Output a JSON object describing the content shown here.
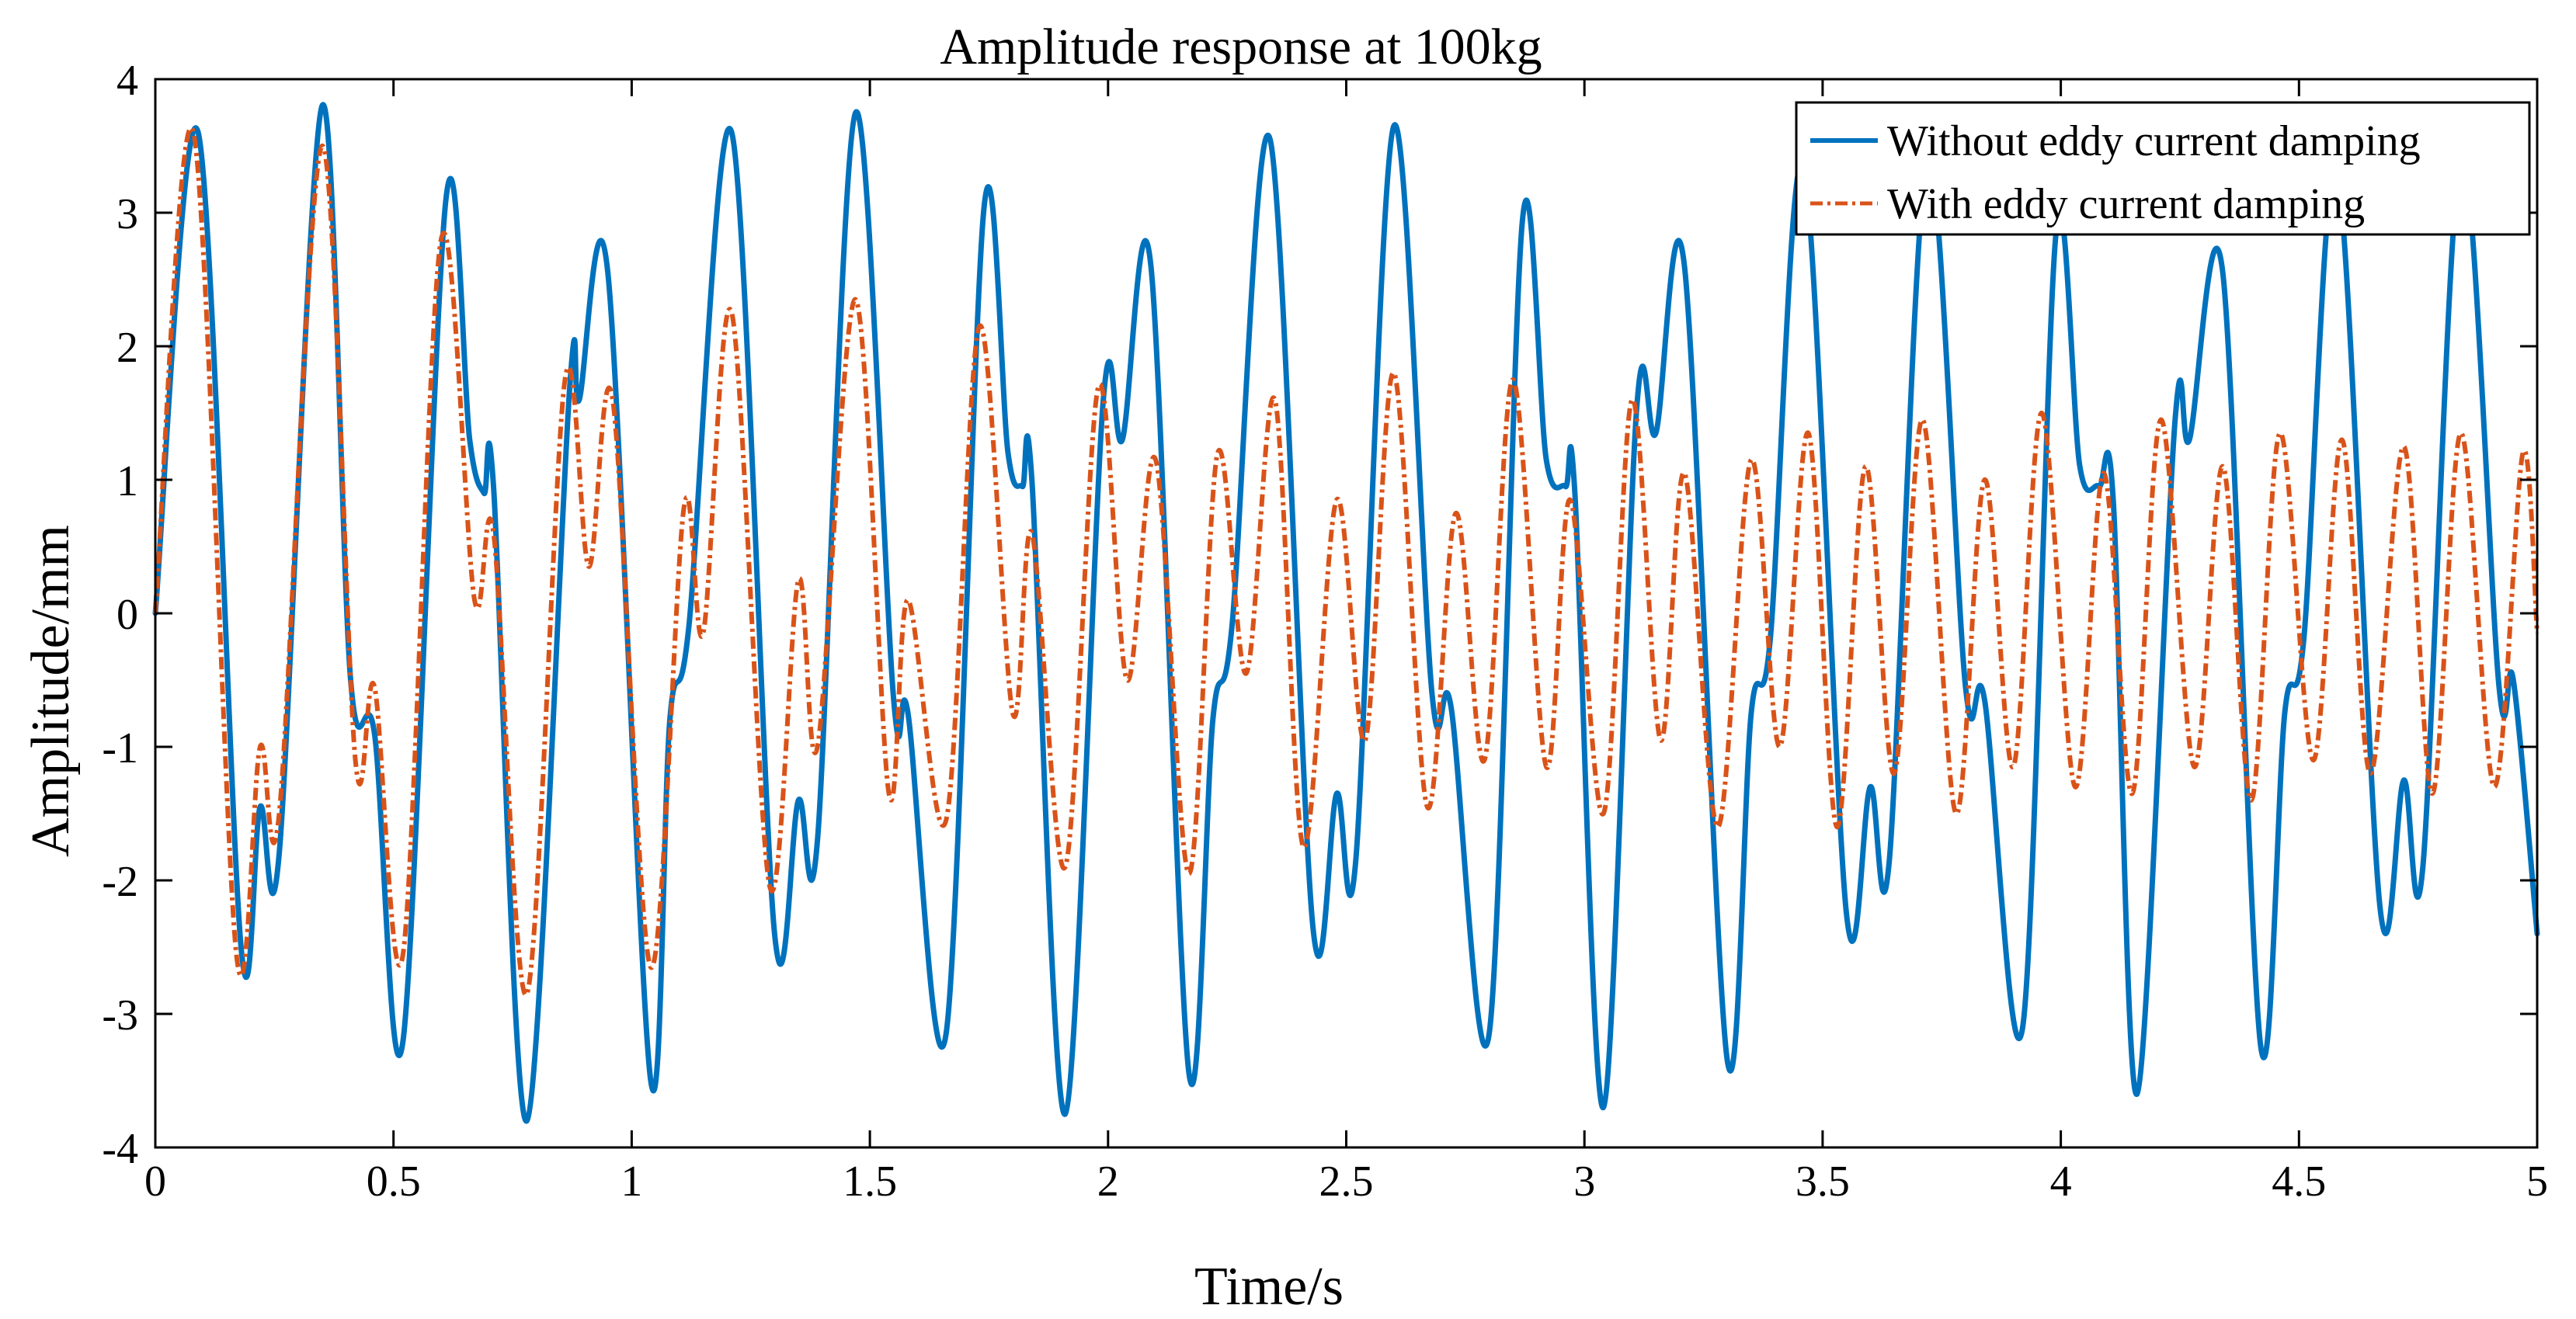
{
  "chart_data": {
    "type": "line",
    "title": "Amplitude response at 100kg",
    "xlabel": "Time/s",
    "ylabel": "Amplitude/mm",
    "xlim": [
      0,
      5
    ],
    "ylim": [
      -4,
      4
    ],
    "x_ticks": [
      "0",
      "0.5",
      "1",
      "1.5",
      "2",
      "2.5",
      "3",
      "3.5",
      "4",
      "4.5",
      "5"
    ],
    "y_ticks": [
      "4",
      "3",
      "2",
      "1",
      "0",
      "-1",
      "-2",
      "-3",
      "-4"
    ],
    "legend_position": "top-right",
    "grid": false,
    "series": [
      {
        "name": "Without eddy current damping",
        "color": "#0072BD",
        "line_style": "solid",
        "points": [
          [
            0.0,
            0.0
          ],
          [
            0.09,
            3.6
          ],
          [
            0.18,
            -2.5
          ],
          [
            0.22,
            -1.45
          ],
          [
            0.26,
            -1.8
          ],
          [
            0.35,
            3.8
          ],
          [
            0.41,
            -0.5
          ],
          [
            0.46,
            -0.9
          ],
          [
            0.52,
            -3.2
          ],
          [
            0.61,
            3.1
          ],
          [
            0.66,
            1.3
          ],
          [
            0.69,
            0.9
          ],
          [
            0.71,
            0.95
          ],
          [
            0.78,
            -3.8
          ],
          [
            0.87,
            1.7
          ],
          [
            0.89,
            1.6
          ],
          [
            0.95,
            2.55
          ],
          [
            1.04,
            -3.5
          ],
          [
            1.08,
            -0.8
          ],
          [
            1.12,
            -0.1
          ],
          [
            1.21,
            3.6
          ],
          [
            1.3,
            -2.4
          ],
          [
            1.35,
            -1.4
          ],
          [
            1.39,
            -1.7
          ],
          [
            1.47,
            3.75
          ],
          [
            1.55,
            -0.65
          ],
          [
            1.58,
            -0.75
          ],
          [
            1.66,
            -3.15
          ],
          [
            1.74,
            3.05
          ],
          [
            1.79,
            1.2
          ],
          [
            1.82,
            0.95
          ],
          [
            1.84,
            1.0
          ],
          [
            1.91,
            -3.75
          ],
          [
            1.99,
            1.6
          ],
          [
            2.03,
            1.3
          ],
          [
            2.09,
            2.6
          ],
          [
            2.17,
            -3.45
          ],
          [
            2.22,
            -0.8
          ],
          [
            2.26,
            -0.1
          ],
          [
            2.34,
            3.55
          ],
          [
            2.43,
            -2.35
          ],
          [
            2.48,
            -1.35
          ],
          [
            2.52,
            -1.85
          ],
          [
            2.6,
            3.65
          ],
          [
            2.68,
            -0.6
          ],
          [
            2.72,
            -0.7
          ],
          [
            2.8,
            -3.15
          ],
          [
            2.87,
            2.95
          ],
          [
            2.92,
            1.15
          ],
          [
            2.96,
            0.95
          ],
          [
            2.98,
            0.9
          ],
          [
            3.04,
            -3.7
          ],
          [
            3.11,
            1.55
          ],
          [
            3.15,
            1.35
          ],
          [
            3.21,
            2.6
          ],
          [
            3.3,
            -3.35
          ],
          [
            3.35,
            -0.75
          ],
          [
            3.39,
            -0.2
          ],
          [
            3.46,
            3.35
          ],
          [
            3.55,
            -2.25
          ],
          [
            3.6,
            -1.3
          ],
          [
            3.64,
            -1.85
          ],
          [
            3.72,
            3.4
          ],
          [
            3.8,
            -0.55
          ],
          [
            3.84,
            -0.65
          ],
          [
            3.92,
            -3.1
          ],
          [
            3.99,
            2.85
          ],
          [
            4.04,
            1.1
          ],
          [
            4.08,
            0.95
          ],
          [
            4.11,
            0.85
          ],
          [
            4.16,
            -3.6
          ],
          [
            4.24,
            1.45
          ],
          [
            4.27,
            1.3
          ],
          [
            4.34,
            2.55
          ],
          [
            4.42,
            -3.25
          ],
          [
            4.47,
            -0.75
          ],
          [
            4.51,
            -0.2
          ],
          [
            4.58,
            3.3
          ],
          [
            4.67,
            -2.2
          ],
          [
            4.72,
            -1.25
          ],
          [
            4.76,
            -1.9
          ],
          [
            4.84,
            3.4
          ],
          [
            4.92,
            -0.55
          ],
          [
            4.95,
            -0.5
          ],
          [
            5.0,
            -2.4
          ]
        ]
      },
      {
        "name": "With eddy current damping",
        "color": "#D95319",
        "line_style": "dash-dot",
        "points": [
          [
            0.0,
            0.0
          ],
          [
            0.08,
            3.6
          ],
          [
            0.17,
            -2.55
          ],
          [
            0.22,
            -1.0
          ],
          [
            0.26,
            -1.5
          ],
          [
            0.35,
            3.5
          ],
          [
            0.42,
            -1.1
          ],
          [
            0.46,
            -0.55
          ],
          [
            0.52,
            -2.55
          ],
          [
            0.6,
            2.8
          ],
          [
            0.67,
            0.1
          ],
          [
            0.71,
            0.6
          ],
          [
            0.78,
            -2.85
          ],
          [
            0.86,
            1.75
          ],
          [
            0.91,
            0.35
          ],
          [
            0.96,
            1.6
          ],
          [
            1.04,
            -2.65
          ],
          [
            1.11,
            0.8
          ],
          [
            1.15,
            -0.15
          ],
          [
            1.21,
            2.25
          ],
          [
            1.29,
            -2.05
          ],
          [
            1.35,
            0.25
          ],
          [
            1.39,
            -1.0
          ],
          [
            1.47,
            2.35
          ],
          [
            1.54,
            -1.35
          ],
          [
            1.58,
            0.1
          ],
          [
            1.66,
            -1.55
          ],
          [
            1.73,
            2.15
          ],
          [
            1.8,
            -0.75
          ],
          [
            1.84,
            0.6
          ],
          [
            1.91,
            -1.9
          ],
          [
            1.98,
            1.7
          ],
          [
            2.04,
            -0.5
          ],
          [
            2.1,
            1.15
          ],
          [
            2.17,
            -1.95
          ],
          [
            2.23,
            1.2
          ],
          [
            2.29,
            -0.45
          ],
          [
            2.35,
            1.6
          ],
          [
            2.41,
            -1.75
          ],
          [
            2.48,
            0.85
          ],
          [
            2.54,
            -0.95
          ],
          [
            2.6,
            1.8
          ],
          [
            2.67,
            -1.45
          ],
          [
            2.73,
            0.75
          ],
          [
            2.79,
            -1.1
          ],
          [
            2.85,
            1.75
          ],
          [
            2.92,
            -1.15
          ],
          [
            2.97,
            0.85
          ],
          [
            3.04,
            -1.5
          ],
          [
            3.1,
            1.6
          ],
          [
            3.16,
            -0.95
          ],
          [
            3.21,
            1.05
          ],
          [
            3.28,
            -1.6
          ],
          [
            3.35,
            1.15
          ],
          [
            3.41,
            -1.0
          ],
          [
            3.47,
            1.35
          ],
          [
            3.53,
            -1.6
          ],
          [
            3.59,
            1.1
          ],
          [
            3.65,
            -1.2
          ],
          [
            3.71,
            1.45
          ],
          [
            3.78,
            -1.5
          ],
          [
            3.84,
            1.0
          ],
          [
            3.9,
            -1.15
          ],
          [
            3.96,
            1.5
          ],
          [
            4.03,
            -1.3
          ],
          [
            4.09,
            1.05
          ],
          [
            4.15,
            -1.35
          ],
          [
            4.21,
            1.45
          ],
          [
            4.28,
            -1.15
          ],
          [
            4.34,
            1.1
          ],
          [
            4.4,
            -1.4
          ],
          [
            4.46,
            1.35
          ],
          [
            4.53,
            -1.1
          ],
          [
            4.59,
            1.3
          ],
          [
            4.65,
            -1.2
          ],
          [
            4.72,
            1.25
          ],
          [
            4.78,
            -1.35
          ],
          [
            4.84,
            1.35
          ],
          [
            4.91,
            -1.3
          ],
          [
            4.97,
            1.2
          ],
          [
            5.0,
            -0.15
          ]
        ]
      }
    ]
  }
}
